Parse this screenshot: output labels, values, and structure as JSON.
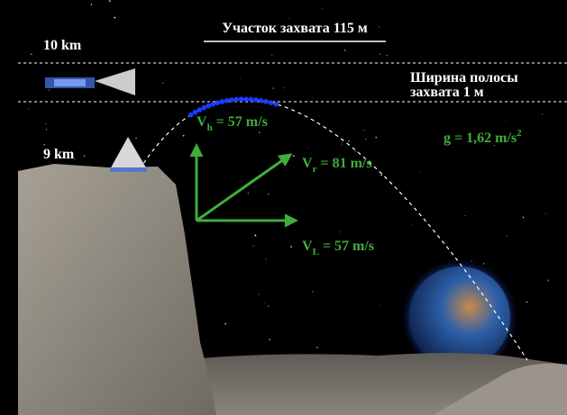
{
  "header": {
    "title": "Участок захвата 115 м"
  },
  "altitudes": {
    "upper": "10 km",
    "lower": "9 km"
  },
  "swath": {
    "line1": "Ширина полосы",
    "line2": "захвата 1 м"
  },
  "velocities": [
    {
      "symbol": "V",
      "subscript": "h",
      "value": " = 57 m/s"
    },
    {
      "symbol": "V",
      "subscript": "r",
      "value": " = 81 m/s"
    },
    {
      "symbol": "V",
      "subscript": "L",
      "value": " = 57 m/s"
    }
  ],
  "gravity": {
    "text": "g = 1,62 m/s",
    "superscript": "2"
  }
}
